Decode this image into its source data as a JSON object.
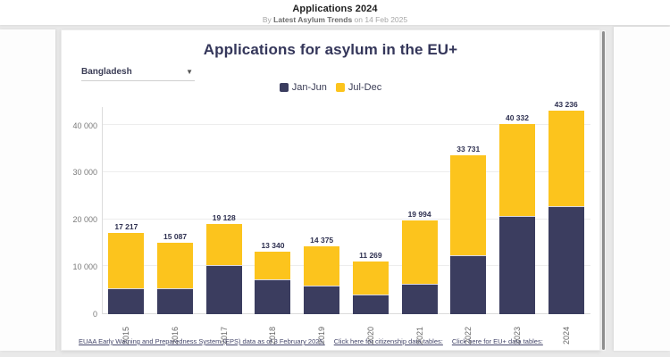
{
  "page_header": {
    "title": "Applications 2024",
    "byline_prefix": "By ",
    "byline_author": "Latest Asylum Trends",
    "byline_suffix": " on 14 Feb 2025"
  },
  "card": {
    "chart_title": "Applications for asylum in the EU+",
    "country_dropdown": {
      "value": "Bangladesh",
      "caret": "▼"
    },
    "footer": {
      "source_link": "EUAA Early Warning and Preparedness System (EPS) data as of 3 February 2025.",
      "citizenship_link": "Click here for citizenship data tables:",
      "eu_link": "Click here for EU+ data tables:"
    }
  },
  "colors": {
    "jan_jun": "#3b3d5f",
    "jul_dec": "#fcc41d",
    "title_navy": "#34365a"
  },
  "chart_data": {
    "type": "bar",
    "stacked": true,
    "title": "Applications for asylum in the EU+",
    "categories": [
      "2015",
      "2016",
      "2017",
      "2018",
      "2019",
      "2020",
      "2021",
      "2022",
      "2023",
      "2024"
    ],
    "series": [
      {
        "name": "Jan-Jun",
        "color": "#3b3d5f",
        "values": [
          5300,
          5400,
          10200,
          7300,
          5900,
          4000,
          6200,
          12400,
          20600,
          22700
        ]
      },
      {
        "name": "Jul-Dec",
        "color": "#fcc41d",
        "values": [
          11917,
          9687,
          8928,
          6040,
          8475,
          7269,
          13794,
          21331,
          19732,
          20536
        ]
      }
    ],
    "totals": [
      17217,
      15087,
      19128,
      13340,
      14375,
      11269,
      19994,
      33731,
      40332,
      43236
    ],
    "total_labels": [
      "17 217",
      "15 087",
      "19 128",
      "13 340",
      "14 375",
      "11 269",
      "19 994",
      "33 731",
      "40 332",
      "43 236"
    ],
    "y_ticks": [
      {
        "value": 0,
        "label": "0"
      },
      {
        "value": 10000,
        "label": "10 000"
      },
      {
        "value": 20000,
        "label": "20 000"
      },
      {
        "value": 30000,
        "label": "30 000"
      },
      {
        "value": 40000,
        "label": "40 000"
      }
    ],
    "ylim": [
      0,
      44000
    ],
    "grid": true,
    "legend_position": "top",
    "xlabel": "",
    "ylabel": ""
  }
}
